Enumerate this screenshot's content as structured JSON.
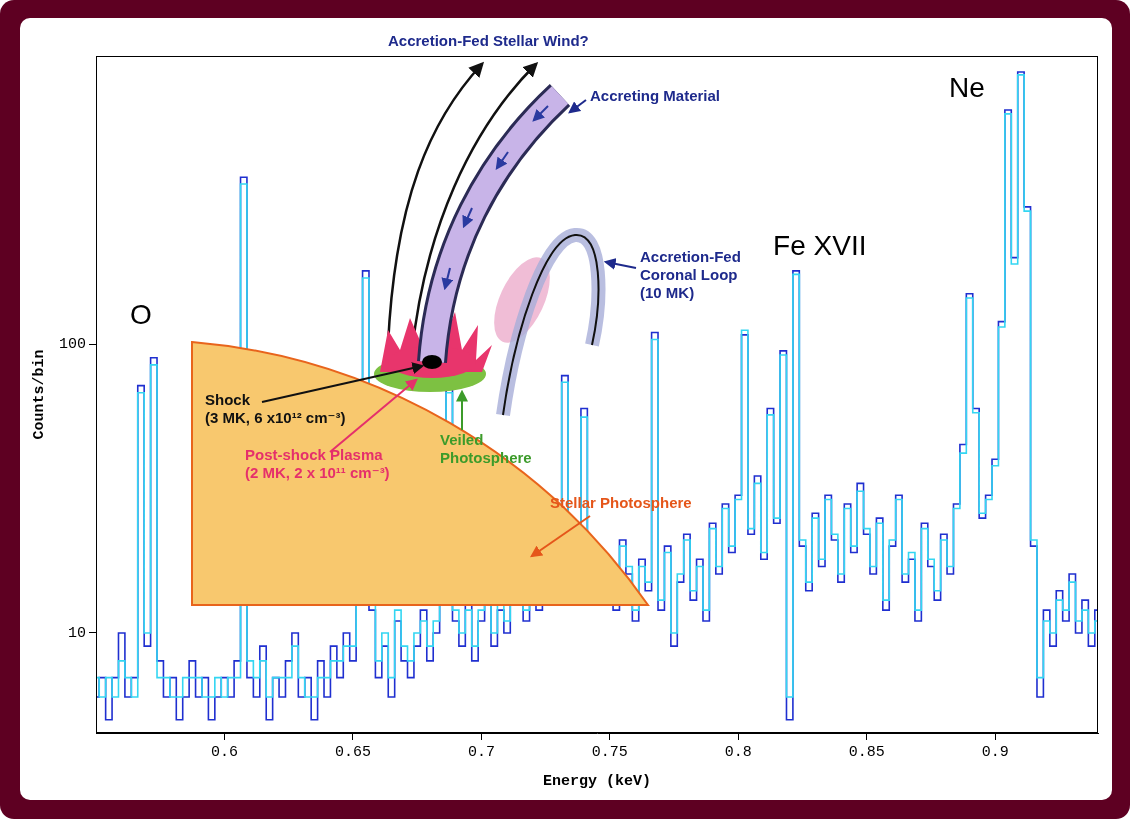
{
  "chart_data": {
    "type": "line",
    "x_label": "Energy (keV)",
    "y_label": "Counts/bin",
    "log": "y",
    "grid": false,
    "xlim": [
      0.55,
      0.94
    ],
    "ylim": [
      4.5,
      1000
    ],
    "xticks": [
      0.6,
      0.65,
      0.7,
      0.75,
      0.8,
      0.85,
      0.9
    ],
    "yticks": [
      10,
      100
    ],
    "x": [
      0.55,
      0.5525,
      0.555,
      0.5575,
      0.56,
      0.5625,
      0.565,
      0.5675,
      0.57,
      0.5725,
      0.575,
      0.5775,
      0.58,
      0.5825,
      0.585,
      0.5875,
      0.59,
      0.5925,
      0.595,
      0.5975,
      0.6,
      0.6025,
      0.605,
      0.6075,
      0.61,
      0.6125,
      0.615,
      0.6175,
      0.62,
      0.6225,
      0.625,
      0.6275,
      0.63,
      0.6325,
      0.635,
      0.6375,
      0.64,
      0.6425,
      0.645,
      0.6475,
      0.65,
      0.6525,
      0.655,
      0.6575,
      0.66,
      0.6625,
      0.665,
      0.6675,
      0.67,
      0.6725,
      0.675,
      0.6775,
      0.68,
      0.6825,
      0.685,
      0.6875,
      0.69,
      0.6925,
      0.695,
      0.6975,
      0.7,
      0.7025,
      0.705,
      0.7075,
      0.71,
      0.7125,
      0.715,
      0.7175,
      0.72,
      0.7225,
      0.725,
      0.7275,
      0.73,
      0.7325,
      0.735,
      0.7375,
      0.74,
      0.7425,
      0.745,
      0.7475,
      0.75,
      0.7525,
      0.755,
      0.7575,
      0.76,
      0.7625,
      0.765,
      0.7675,
      0.77,
      0.7725,
      0.775,
      0.7775,
      0.78,
      0.7825,
      0.785,
      0.7875,
      0.79,
      0.7925,
      0.795,
      0.7975,
      0.8,
      0.8025,
      0.805,
      0.8075,
      0.81,
      0.8125,
      0.815,
      0.8175,
      0.82,
      0.8225,
      0.825,
      0.8275,
      0.83,
      0.8325,
      0.835,
      0.8375,
      0.84,
      0.8425,
      0.845,
      0.8475,
      0.85,
      0.8525,
      0.855,
      0.8575,
      0.86,
      0.8625,
      0.865,
      0.8675,
      0.87,
      0.8725,
      0.875,
      0.8775,
      0.88,
      0.8825,
      0.885,
      0.8875,
      0.89,
      0.8925,
      0.895,
      0.8975,
      0.9,
      0.9025,
      0.905,
      0.9075,
      0.91,
      0.9125,
      0.915,
      0.9175,
      0.92,
      0.9225,
      0.925,
      0.9275,
      0.93,
      0.9325,
      0.935,
      0.9375,
      0.94
    ],
    "series": [
      {
        "color": "#33d6f2",
        "marker": "none",
        "line_style": "steps",
        "values": [
          7,
          6,
          7,
          6,
          8,
          7,
          6,
          68,
          10,
          85,
          7,
          7,
          6,
          6,
          7,
          7,
          7,
          6,
          6,
          7,
          6,
          7,
          7,
          360,
          8,
          7,
          8,
          6,
          7,
          7,
          7,
          9,
          7,
          6,
          6,
          7,
          7,
          8,
          8,
          9,
          9,
          40,
          170,
          13,
          8,
          10,
          7,
          12,
          9,
          8,
          10,
          11,
          9,
          11,
          13,
          68,
          12,
          10,
          12,
          9,
          12,
          14,
          10,
          13,
          11,
          15,
          17,
          12,
          15,
          13,
          19,
          15,
          17,
          74,
          16,
          21,
          56,
          15,
          18,
          14,
          16,
          13,
          20,
          17,
          12,
          17,
          15,
          104,
          13,
          19,
          10,
          16,
          21,
          14,
          17,
          12,
          23,
          17,
          27,
          20,
          29,
          112,
          23,
          33,
          19,
          57,
          25,
          92,
          6,
          175,
          21,
          15,
          25,
          18,
          29,
          22,
          16,
          27,
          20,
          31,
          23,
          17,
          24,
          13,
          21,
          29,
          16,
          19,
          12,
          23,
          18,
          14,
          21,
          17,
          27,
          42,
          145,
          58,
          26,
          29,
          38,
          115,
          630,
          190,
          860,
          290,
          21,
          7,
          11,
          10,
          13,
          12,
          15,
          11,
          12,
          10,
          11
        ]
      },
      {
        "color": "#1f2fd0",
        "marker": "none",
        "line_style": "steps",
        "values": [
          6,
          7,
          5,
          7,
          10,
          6,
          7,
          72,
          9,
          90,
          8,
          6,
          7,
          5,
          6,
          8,
          6,
          7,
          5,
          6,
          7,
          6,
          8,
          380,
          7,
          6,
          9,
          5,
          7,
          6,
          8,
          10,
          6,
          7,
          5,
          8,
          6,
          9,
          7,
          10,
          8,
          45,
          180,
          12,
          7,
          9,
          6,
          11,
          8,
          7,
          9,
          12,
          8,
          10,
          14,
          72,
          11,
          9,
          13,
          8,
          11,
          15,
          9,
          12,
          10,
          14,
          18,
          11,
          16,
          12,
          20,
          14,
          18,
          78,
          15,
          22,
          60,
          14,
          19,
          13,
          17,
          12,
          21,
          16,
          11,
          18,
          14,
          110,
          12,
          20,
          9,
          15,
          22,
          13,
          18,
          11,
          24,
          16,
          28,
          19,
          30,
          108,
          22,
          35,
          18,
          60,
          24,
          95,
          5,
          180,
          20,
          14,
          26,
          17,
          30,
          21,
          15,
          28,
          19,
          33,
          22,
          16,
          25,
          12,
          20,
          30,
          15,
          18,
          11,
          24,
          17,
          13,
          22,
          16,
          28,
          45,
          150,
          60,
          25,
          30,
          40,
          120,
          650,
          200,
          880,
          300,
          20,
          6,
          12,
          9,
          14,
          11,
          16,
          10,
          13,
          9,
          12
        ]
      }
    ],
    "annotations": [
      {
        "text": "O",
        "x": 0.5675,
        "y": 125
      },
      {
        "text": "Fe XVII",
        "x": 0.8317,
        "y": 218
      },
      {
        "text": "Ne",
        "x": 0.889,
        "y": 765
      }
    ]
  },
  "diagram": {
    "stellar_wind": [
      "Accretion-Fed Stellar Wind?"
    ],
    "accreting_material": [
      "Accreting Material"
    ],
    "coronal_loop": [
      "Accretion-Fed",
      "Coronal Loop",
      "(10 MK)"
    ],
    "shock": [
      "Shock",
      "(3 MK, 6 x10¹² cm⁻³)"
    ],
    "post_shock": [
      "Post-shock Plasma",
      "(2 MK, 2 x 10¹¹ cm⁻³)"
    ],
    "veiled_photosphere": [
      "Veiled",
      "Photosphere"
    ],
    "stellar_photosphere": [
      "Stellar Photosphere"
    ]
  }
}
